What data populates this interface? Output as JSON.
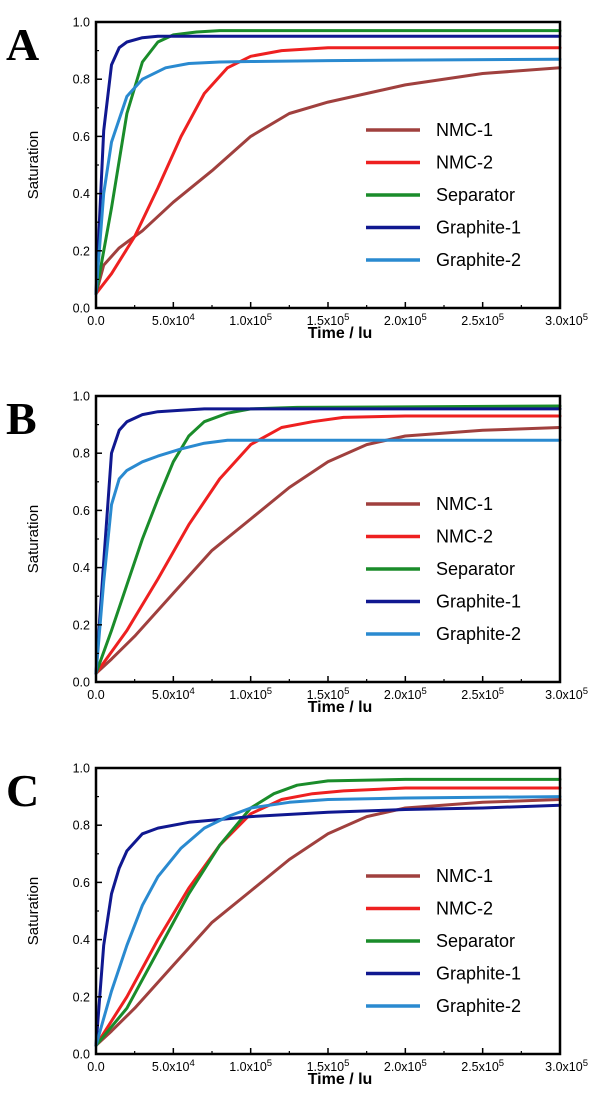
{
  "chart_data": [
    {
      "type": "line",
      "panel_label": "A",
      "xlabel": "Time / lu",
      "ylabel": "Saturation",
      "xlim": [
        0,
        300000
      ],
      "ylim": [
        0,
        1.0
      ],
      "x_ticks": [
        "0.0",
        "5.0x10⁴",
        "1.0x10⁵",
        "1.5x10⁵",
        "2.0x10⁵",
        "2.5x10⁵",
        "3.0x10⁵"
      ],
      "y_ticks": [
        "0.0",
        "0.2",
        "0.4",
        "0.6",
        "0.8",
        "1.0"
      ],
      "legend_position": "center-right",
      "grid": false,
      "series": [
        {
          "name": "NMC-1",
          "color": "#a0403e",
          "x": [
            0,
            5000,
            15000,
            30000,
            50000,
            75000,
            100000,
            125000,
            150000,
            200000,
            250000,
            300000
          ],
          "y": [
            0.05,
            0.15,
            0.21,
            0.27,
            0.37,
            0.48,
            0.6,
            0.68,
            0.72,
            0.78,
            0.82,
            0.84
          ]
        },
        {
          "name": "NMC-2",
          "color": "#ee2020",
          "x": [
            0,
            10000,
            25000,
            40000,
            55000,
            70000,
            85000,
            100000,
            120000,
            150000,
            200000,
            300000
          ],
          "y": [
            0.05,
            0.12,
            0.25,
            0.42,
            0.6,
            0.75,
            0.84,
            0.88,
            0.9,
            0.91,
            0.91,
            0.91
          ]
        },
        {
          "name": "Separator",
          "color": "#1a8c2a",
          "x": [
            0,
            10000,
            20000,
            30000,
            40000,
            50000,
            65000,
            80000,
            100000,
            150000,
            300000
          ],
          "y": [
            0.05,
            0.35,
            0.68,
            0.86,
            0.93,
            0.955,
            0.965,
            0.97,
            0.97,
            0.97,
            0.97
          ]
        },
        {
          "name": "Graphite-1",
          "color": "#101890",
          "x": [
            0,
            5000,
            10000,
            15000,
            20000,
            30000,
            40000,
            60000,
            100000,
            300000
          ],
          "y": [
            0.05,
            0.62,
            0.85,
            0.91,
            0.93,
            0.945,
            0.95,
            0.95,
            0.95,
            0.95
          ]
        },
        {
          "name": "Graphite-2",
          "color": "#2a8ad0",
          "x": [
            0,
            5000,
            10000,
            20000,
            30000,
            45000,
            60000,
            80000,
            100000,
            150000,
            300000
          ],
          "y": [
            0.05,
            0.4,
            0.58,
            0.74,
            0.8,
            0.84,
            0.855,
            0.86,
            0.862,
            0.865,
            0.87
          ]
        }
      ]
    },
    {
      "type": "line",
      "panel_label": "B",
      "xlabel": "Time / lu",
      "ylabel": "Saturation",
      "xlim": [
        0,
        300000
      ],
      "ylim": [
        0,
        1.0
      ],
      "x_ticks": [
        "0.0",
        "5.0x10⁴",
        "1.0x10⁵",
        "1.5x10⁵",
        "2.0x10⁵",
        "2.5x10⁵",
        "3.0x10⁵"
      ],
      "y_ticks": [
        "0.0",
        "0.2",
        "0.4",
        "0.6",
        "0.8",
        "1.0"
      ],
      "legend_position": "center-right",
      "grid": false,
      "series": [
        {
          "name": "NMC-1",
          "color": "#a0403e",
          "x": [
            0,
            10000,
            25000,
            50000,
            75000,
            100000,
            125000,
            150000,
            175000,
            200000,
            250000,
            300000
          ],
          "y": [
            0.03,
            0.08,
            0.16,
            0.31,
            0.46,
            0.57,
            0.68,
            0.77,
            0.83,
            0.86,
            0.88,
            0.89
          ]
        },
        {
          "name": "NMC-2",
          "color": "#ee2020",
          "x": [
            0,
            20000,
            40000,
            60000,
            80000,
            100000,
            120000,
            140000,
            160000,
            200000,
            300000
          ],
          "y": [
            0.03,
            0.18,
            0.36,
            0.55,
            0.71,
            0.83,
            0.89,
            0.91,
            0.925,
            0.93,
            0.93
          ]
        },
        {
          "name": "Separator",
          "color": "#1a8c2a",
          "x": [
            0,
            10000,
            20000,
            30000,
            40000,
            50000,
            60000,
            70000,
            85000,
            100000,
            130000,
            300000
          ],
          "y": [
            0.03,
            0.18,
            0.34,
            0.5,
            0.64,
            0.77,
            0.86,
            0.91,
            0.94,
            0.955,
            0.96,
            0.965
          ]
        },
        {
          "name": "Graphite-1",
          "color": "#101890",
          "x": [
            0,
            5000,
            10000,
            15000,
            20000,
            30000,
            40000,
            55000,
            70000,
            100000,
            300000
          ],
          "y": [
            0.03,
            0.42,
            0.8,
            0.88,
            0.91,
            0.935,
            0.945,
            0.95,
            0.955,
            0.955,
            0.955
          ]
        },
        {
          "name": "Graphite-2",
          "color": "#2a8ad0",
          "x": [
            0,
            5000,
            10000,
            15000,
            20000,
            30000,
            40000,
            55000,
            70000,
            85000,
            100000,
            300000
          ],
          "y": [
            0.03,
            0.35,
            0.62,
            0.71,
            0.74,
            0.77,
            0.79,
            0.815,
            0.835,
            0.845,
            0.845,
            0.845
          ]
        }
      ]
    },
    {
      "type": "line",
      "panel_label": "C",
      "xlabel": "Time / lu",
      "ylabel": "Saturation",
      "xlim": [
        0,
        300000
      ],
      "ylim": [
        0,
        1.0
      ],
      "x_ticks": [
        "0.0",
        "5.0x10⁴",
        "1.0x10⁵",
        "1.5x10⁵",
        "2.0x10⁵",
        "2.5x10⁵",
        "3.0x10⁵"
      ],
      "y_ticks": [
        "0.0",
        "0.2",
        "0.4",
        "0.6",
        "0.8",
        "1.0"
      ],
      "legend_position": "center-right",
      "grid": false,
      "series": [
        {
          "name": "NMC-1",
          "color": "#a0403e",
          "x": [
            0,
            10000,
            25000,
            50000,
            75000,
            100000,
            125000,
            150000,
            175000,
            200000,
            250000,
            300000
          ],
          "y": [
            0.03,
            0.08,
            0.16,
            0.31,
            0.46,
            0.57,
            0.68,
            0.77,
            0.83,
            0.86,
            0.88,
            0.89
          ]
        },
        {
          "name": "NMC-2",
          "color": "#ee2020",
          "x": [
            0,
            20000,
            40000,
            60000,
            80000,
            100000,
            120000,
            140000,
            160000,
            200000,
            300000
          ],
          "y": [
            0.03,
            0.2,
            0.4,
            0.58,
            0.73,
            0.84,
            0.89,
            0.91,
            0.92,
            0.93,
            0.93
          ]
        },
        {
          "name": "Separator",
          "color": "#1a8c2a",
          "x": [
            0,
            20000,
            40000,
            60000,
            80000,
            100000,
            115000,
            130000,
            150000,
            200000,
            300000
          ],
          "y": [
            0.03,
            0.16,
            0.36,
            0.56,
            0.73,
            0.86,
            0.91,
            0.94,
            0.955,
            0.96,
            0.96
          ]
        },
        {
          "name": "Graphite-1",
          "color": "#101890",
          "x": [
            0,
            5000,
            10000,
            15000,
            20000,
            30000,
            40000,
            60000,
            80000,
            100000,
            150000,
            200000,
            250000,
            300000
          ],
          "y": [
            0.03,
            0.38,
            0.56,
            0.65,
            0.71,
            0.77,
            0.79,
            0.81,
            0.82,
            0.83,
            0.845,
            0.855,
            0.86,
            0.87
          ]
        },
        {
          "name": "Graphite-2",
          "color": "#2a8ad0",
          "x": [
            0,
            10000,
            20000,
            30000,
            40000,
            55000,
            70000,
            85000,
            100000,
            125000,
            150000,
            200000,
            300000
          ],
          "y": [
            0.03,
            0.22,
            0.38,
            0.52,
            0.62,
            0.72,
            0.79,
            0.83,
            0.86,
            0.88,
            0.89,
            0.895,
            0.9
          ]
        }
      ]
    }
  ]
}
